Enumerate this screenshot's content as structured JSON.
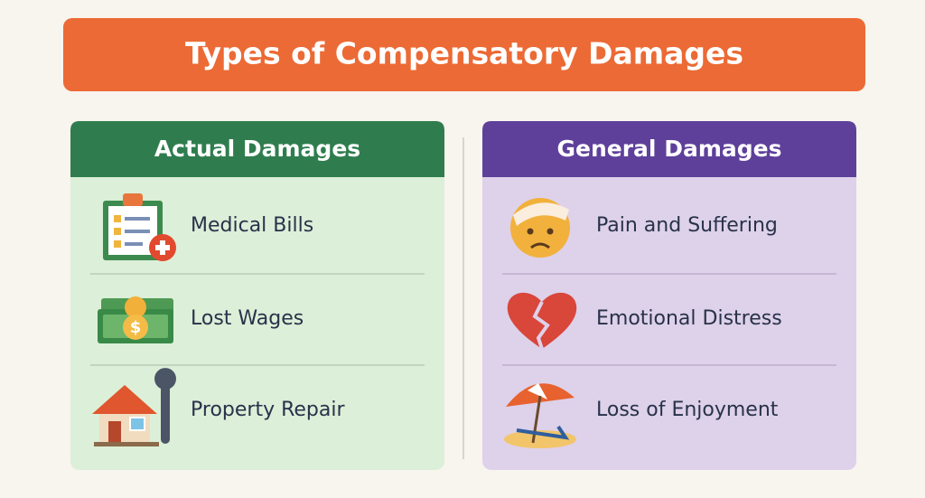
{
  "title": "Types of Compensatory Damages",
  "panels": [
    {
      "title": "Actual Damages",
      "items": [
        "Medical Bills",
        "Lost Wages",
        "Property Repair"
      ]
    },
    {
      "title": "General Damages",
      "items": [
        "Pain and Suffering",
        "Emotional Distress",
        "Loss of Enjoyment"
      ]
    }
  ]
}
